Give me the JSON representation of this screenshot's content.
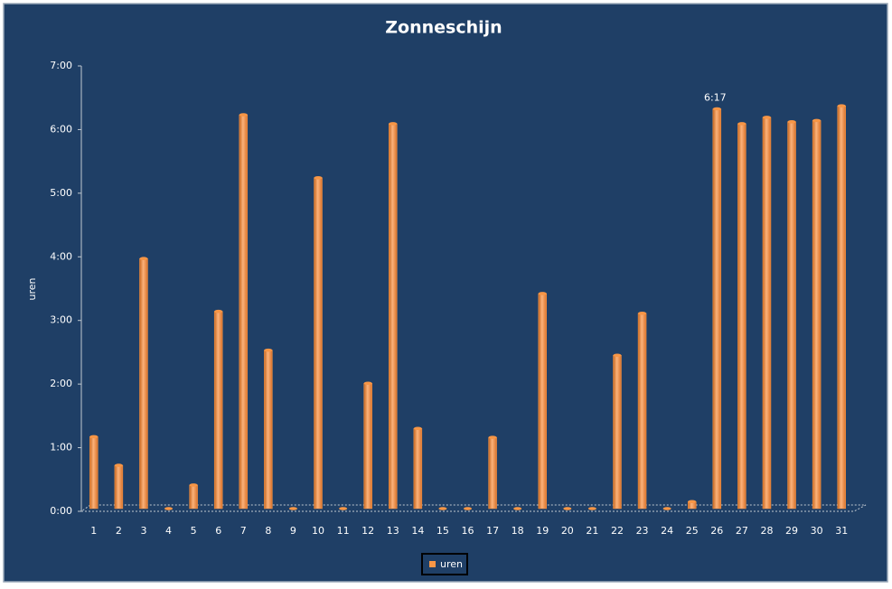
{
  "chart_data": {
    "type": "bar",
    "title": "Zonneschijn",
    "y_label": "uren",
    "categories": [
      "1",
      "2",
      "3",
      "4",
      "5",
      "6",
      "7",
      "8",
      "9",
      "10",
      "11",
      "12",
      "13",
      "14",
      "15",
      "16",
      "17",
      "18",
      "19",
      "20",
      "21",
      "22",
      "23",
      "24",
      "25",
      "26",
      "27",
      "28",
      "29",
      "30",
      "31"
    ],
    "series": [
      {
        "name": "uren",
        "color": "#f79646",
        "values": [
          1.13,
          0.68,
          3.93,
          0,
          0.37,
          3.1,
          6.19,
          2.49,
          0,
          5.2,
          0,
          1.97,
          6.05,
          1.26,
          0,
          0,
          1.12,
          0,
          3.38,
          0,
          0,
          2.41,
          3.07,
          0,
          0.11,
          6.283,
          6.05,
          6.15,
          6.08,
          6.1,
          6.33
        ],
        "value_labels": [
          null,
          null,
          null,
          null,
          null,
          null,
          null,
          null,
          null,
          null,
          null,
          null,
          null,
          null,
          null,
          null,
          null,
          null,
          null,
          null,
          null,
          null,
          null,
          null,
          null,
          "6:17",
          null,
          null,
          null,
          null,
          null
        ]
      }
    ],
    "ylim": [
      0,
      7
    ],
    "yticks": [
      {
        "value": 0,
        "label": "0:00"
      },
      {
        "value": 1,
        "label": "1:00"
      },
      {
        "value": 2,
        "label": "2:00"
      },
      {
        "value": 3,
        "label": "3:00"
      },
      {
        "value": 4,
        "label": "4:00"
      },
      {
        "value": 5,
        "label": "5:00"
      },
      {
        "value": 6,
        "label": "6:00"
      },
      {
        "value": 7,
        "label": "7:00"
      }
    ],
    "legend": "bottom"
  }
}
